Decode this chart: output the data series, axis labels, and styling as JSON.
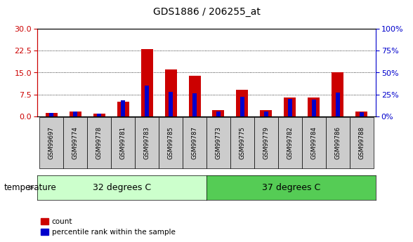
{
  "title": "GDS1886 / 206255_at",
  "samples": [
    "GSM99697",
    "GSM99774",
    "GSM99778",
    "GSM99781",
    "GSM99783",
    "GSM99785",
    "GSM99787",
    "GSM99773",
    "GSM99775",
    "GSM99779",
    "GSM99782",
    "GSM99784",
    "GSM99786",
    "GSM99788"
  ],
  "count_values": [
    1.2,
    1.5,
    0.8,
    5.0,
    23.0,
    16.0,
    14.0,
    2.0,
    9.0,
    2.0,
    6.5,
    6.5,
    15.0,
    1.5
  ],
  "percentile_values": [
    3.5,
    5.5,
    2.5,
    18.0,
    35.0,
    28.0,
    26.0,
    5.0,
    22.0,
    5.5,
    20.0,
    19.0,
    27.0,
    4.5
  ],
  "group1_label": "32 degrees C",
  "group2_label": "37 degrees C",
  "group1_count": 7,
  "group2_count": 7,
  "factor_label": "temperature",
  "ylim_left": [
    0,
    30
  ],
  "ylim_right": [
    0,
    100
  ],
  "yticks_left": [
    0,
    7.5,
    15,
    22.5,
    30
  ],
  "yticks_right": [
    0,
    25,
    50,
    75,
    100
  ],
  "bar_color_red": "#cc0000",
  "bar_color_blue": "#0000cc",
  "bar_width": 0.5,
  "group1_bg": "#ccffcc",
  "group2_bg": "#55cc55",
  "tick_label_bg": "#cccccc",
  "legend_count_label": "count",
  "legend_pct_label": "percentile rank within the sample",
  "left_axis_color": "#cc0000",
  "right_axis_color": "#0000cc"
}
